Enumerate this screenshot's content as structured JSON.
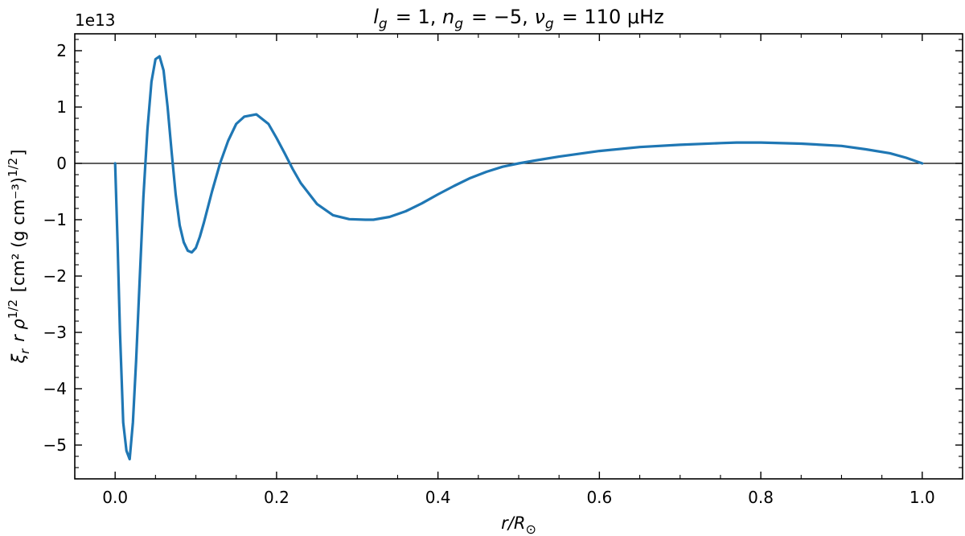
{
  "chart_data": {
    "type": "line",
    "title": "l_g = 1, n_g = −5, ν_g = 110 μHz",
    "xlabel": "r/R_⊙",
    "ylabel": "ξ_r r ρ^(1/2) [cm² (g cm⁻³)^(1/2)]",
    "y_offset_text": "1e13",
    "y_scale_factor": 10000000000000.0,
    "xlim": [
      -0.05,
      1.05
    ],
    "ylim": [
      -5.6,
      2.3
    ],
    "x_ticks": [
      0.0,
      0.2,
      0.4,
      0.6,
      0.8,
      1.0
    ],
    "x_tick_labels": [
      "0.0",
      "0.2",
      "0.4",
      "0.6",
      "0.8",
      "1.0"
    ],
    "y_ticks": [
      -5,
      -4,
      -3,
      -2,
      -1,
      0,
      1,
      2
    ],
    "y_tick_labels": [
      "−5",
      "−4",
      "−3",
      "−2",
      "−1",
      "0",
      "1",
      "2"
    ],
    "zero_line": true,
    "grid": false,
    "series": [
      {
        "color": "#1f77b4",
        "x": [
          0.0,
          0.003,
          0.006,
          0.01,
          0.014,
          0.018,
          0.022,
          0.026,
          0.03,
          0.035,
          0.04,
          0.045,
          0.05,
          0.055,
          0.06,
          0.065,
          0.07,
          0.075,
          0.08,
          0.085,
          0.09,
          0.095,
          0.1,
          0.105,
          0.11,
          0.12,
          0.13,
          0.14,
          0.15,
          0.16,
          0.175,
          0.19,
          0.2,
          0.21,
          0.22,
          0.23,
          0.25,
          0.27,
          0.29,
          0.31,
          0.32,
          0.34,
          0.36,
          0.38,
          0.4,
          0.42,
          0.44,
          0.46,
          0.48,
          0.5,
          0.52,
          0.55,
          0.6,
          0.65,
          0.7,
          0.75,
          0.77,
          0.8,
          0.85,
          0.9,
          0.93,
          0.96,
          0.98,
          1.0
        ],
        "y": [
          0.0,
          -1.4,
          -3.0,
          -4.6,
          -5.1,
          -5.25,
          -4.6,
          -3.5,
          -2.2,
          -0.6,
          0.6,
          1.45,
          1.85,
          1.9,
          1.65,
          1.0,
          0.2,
          -0.55,
          -1.1,
          -1.4,
          -1.55,
          -1.58,
          -1.5,
          -1.3,
          -1.05,
          -0.5,
          0.0,
          0.4,
          0.7,
          0.83,
          0.87,
          0.7,
          0.45,
          0.18,
          -0.1,
          -0.35,
          -0.72,
          -0.92,
          -0.99,
          -1.0,
          -1.0,
          -0.95,
          -0.85,
          -0.71,
          -0.55,
          -0.4,
          -0.26,
          -0.15,
          -0.06,
          0.0,
          0.05,
          0.12,
          0.22,
          0.29,
          0.33,
          0.36,
          0.37,
          0.37,
          0.35,
          0.31,
          0.25,
          0.18,
          0.1,
          0.0
        ]
      }
    ]
  }
}
